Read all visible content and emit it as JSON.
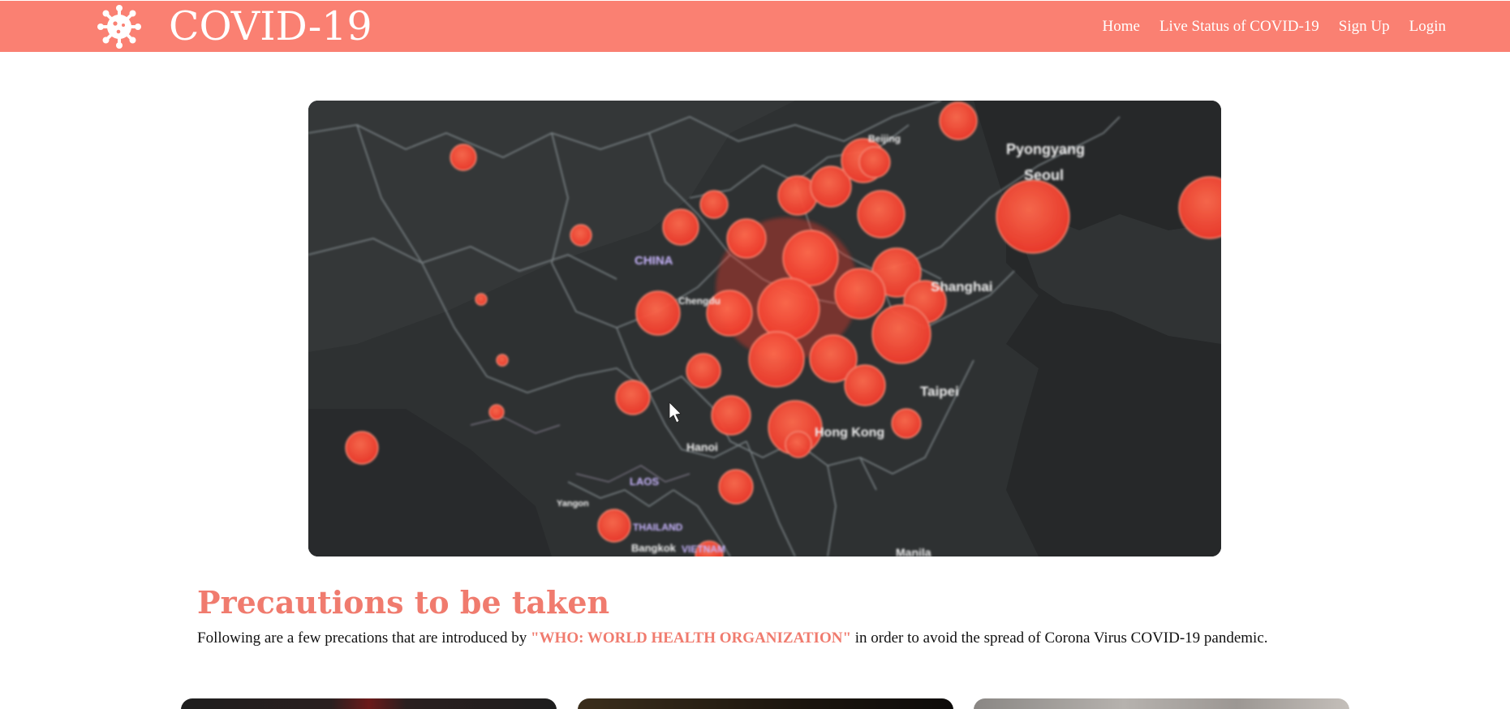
{
  "header": {
    "brand_icon": "virus-icon",
    "title": "COVID-19",
    "nav": [
      {
        "label": "Home"
      },
      {
        "label": "Live Status of COVID-19"
      },
      {
        "label": "Sign Up"
      },
      {
        "label": "Login"
      }
    ],
    "bg_color": "#fa8072"
  },
  "hero": {
    "map_labels": {
      "china": "CHINA",
      "pyongyang": "Pyongyang",
      "seoul": "Seoul",
      "shanghai": "Shanghai",
      "taipei": "Taipei",
      "hongkong": "Hong Kong",
      "hanoi": "Hanoi",
      "laos": "LAOS",
      "bangkok": "Bangkok",
      "vietnam": "VIETNAM",
      "manila": "Manila",
      "chengdu": "Chengdu",
      "beijing": "Beijing",
      "yangon": "Yangon",
      "thailand": "THAILAND"
    }
  },
  "precautions": {
    "title": "Precautions to be taken",
    "text_before": "Following are a few precations that are introduced by ",
    "highlight": "\"WHO: WORLD HEALTH ORGANIZATION\"",
    "text_after": " in order to avoid the spread of Corona Virus COVID-19 pandemic.",
    "accent_color": "#f07b6e"
  }
}
